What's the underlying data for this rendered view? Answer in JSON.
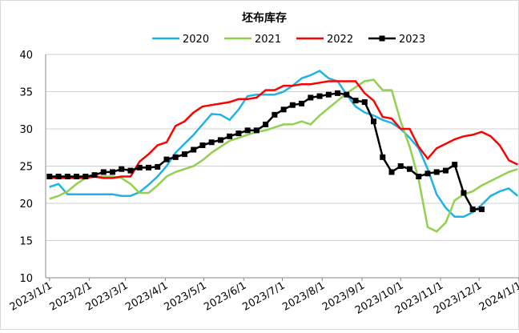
{
  "chart_data": {
    "type": "line",
    "title": "坯布库存",
    "x": [
      "2023/1/1",
      "2023/1/8",
      "2023/1/15",
      "2023/1/22",
      "2023/1/29",
      "2023/2/5",
      "2023/2/12",
      "2023/2/19",
      "2023/2/26",
      "2023/3/5",
      "2023/3/12",
      "2023/3/19",
      "2023/3/26",
      "2023/4/2",
      "2023/4/9",
      "2023/4/16",
      "2023/4/23",
      "2023/4/30",
      "2023/5/7",
      "2023/5/14",
      "2023/5/21",
      "2023/5/28",
      "2023/6/4",
      "2023/6/11",
      "2023/6/18",
      "2023/6/25",
      "2023/7/2",
      "2023/7/9",
      "2023/7/16",
      "2023/7/23",
      "2023/7/30",
      "2023/8/6",
      "2023/8/13",
      "2023/8/20",
      "2023/8/27",
      "2023/9/3",
      "2023/9/10",
      "2023/9/17",
      "2023/9/24",
      "2023/10/1",
      "2023/10/8",
      "2023/10/15",
      "2023/10/22",
      "2023/10/29",
      "2023/11/5",
      "2023/11/12",
      "2023/11/19",
      "2023/11/26",
      "2023/12/3",
      "2023/12/10",
      "2023/12/17",
      "2023/12/24",
      "2023/12/31"
    ],
    "series": [
      {
        "name": "2020",
        "color": "#1fb2e6",
        "values": [
          22.2,
          22.6,
          21.2,
          21.2,
          21.2,
          21.2,
          21.2,
          21.2,
          21.0,
          21.0,
          21.5,
          22.5,
          23.6,
          25.0,
          26.8,
          28.0,
          29.2,
          30.6,
          32.0,
          31.9,
          31.2,
          32.6,
          34.4,
          34.6,
          34.6,
          34.6,
          35.0,
          35.8,
          36.8,
          37.2,
          37.8,
          36.8,
          36.4,
          34.6,
          33.0,
          32.2,
          31.8,
          31.2,
          30.8,
          30.0,
          28.8,
          27.4,
          24.6,
          21.2,
          19.4,
          18.2,
          18.2,
          18.8,
          19.8,
          21.0,
          21.6,
          22.0,
          21.0
        ]
      },
      {
        "name": "2021",
        "color": "#92d050",
        "values": [
          20.6,
          21.0,
          21.6,
          22.6,
          23.4,
          23.6,
          23.6,
          23.6,
          23.4,
          22.6,
          21.4,
          21.4,
          22.4,
          23.6,
          24.2,
          24.6,
          25.0,
          25.8,
          26.8,
          27.6,
          28.4,
          28.8,
          29.2,
          29.6,
          29.8,
          30.2,
          30.6,
          30.6,
          31.0,
          30.6,
          31.8,
          32.8,
          33.8,
          34.8,
          35.6,
          36.4,
          36.6,
          35.2,
          35.2,
          31.0,
          27.6,
          23.2,
          16.8,
          16.2,
          17.4,
          20.4,
          21.2,
          21.6,
          22.4,
          23.0,
          23.6,
          24.2,
          24.6
        ]
      },
      {
        "name": "2022",
        "color": "#ff0000",
        "values": [
          23.4,
          23.4,
          23.4,
          23.4,
          23.4,
          23.6,
          23.4,
          23.4,
          23.6,
          23.6,
          25.6,
          26.6,
          27.8,
          28.2,
          30.4,
          31.0,
          32.2,
          33.0,
          33.2,
          33.4,
          33.6,
          34.0,
          34.0,
          34.2,
          35.2,
          35.2,
          35.8,
          35.8,
          36.0,
          36.0,
          36.2,
          36.4,
          36.4,
          36.4,
          36.4,
          34.8,
          33.8,
          31.6,
          31.4,
          30.0,
          30.0,
          27.6,
          26.0,
          27.4,
          28.0,
          28.6,
          29.0,
          29.2,
          29.6,
          29.0,
          27.8,
          25.8,
          25.2
        ]
      },
      {
        "name": "2023",
        "color": "#000000",
        "marker": "square",
        "values": [
          23.6,
          23.6,
          23.6,
          23.6,
          23.6,
          23.8,
          24.2,
          24.2,
          24.6,
          24.4,
          24.8,
          24.8,
          24.9,
          25.9,
          26.2,
          26.6,
          27.2,
          27.8,
          28.2,
          28.5,
          29.0,
          29.4,
          29.8,
          29.8,
          30.6,
          31.9,
          32.6,
          33.2,
          33.4,
          34.2,
          34.4,
          34.6,
          34.8,
          34.6,
          33.8,
          33.6,
          31.0,
          26.2,
          24.2,
          25.0,
          24.6,
          23.6,
          24.0,
          24.2,
          24.4,
          25.2,
          21.4,
          19.2,
          19.2,
          null,
          null,
          null,
          null
        ]
      }
    ],
    "xlim": [
      "2022/12/29",
      "2024/1/1"
    ],
    "xticks": [
      "2023/1/1",
      "2023/2/1",
      "2023/3/1",
      "2023/4/1",
      "2023/5/1",
      "2023/6/1",
      "2023/7/1",
      "2023/8/1",
      "2023/9/1",
      "2023/10/1",
      "2023/11/1",
      "2023/12/1",
      "2024/1/1"
    ],
    "ylim": [
      10,
      40
    ],
    "yticks": [
      10,
      15,
      20,
      25,
      30,
      35,
      40
    ],
    "grid": true,
    "legend": "top"
  }
}
